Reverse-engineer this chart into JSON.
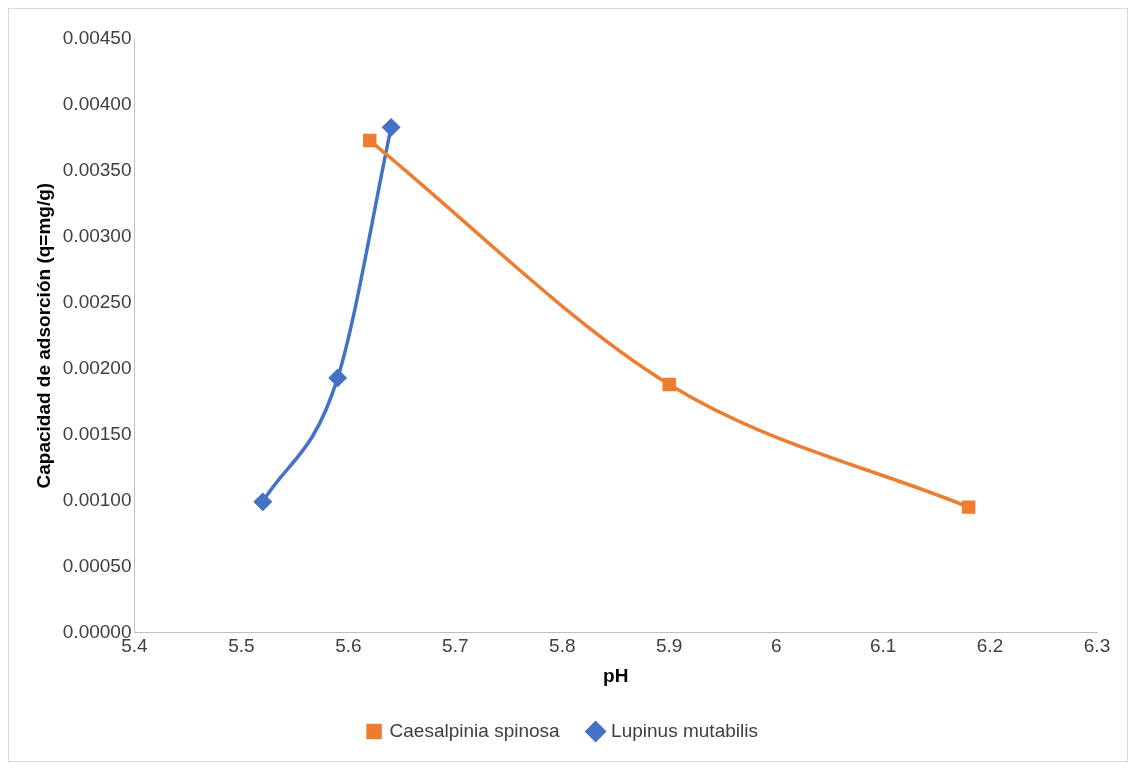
{
  "chart_data": {
    "type": "line",
    "xlabel": "pH",
    "ylabel": "Capacidad de adsorción (q=mg/g)",
    "xlim": [
      5.4,
      6.3
    ],
    "xticks": [
      5.4,
      5.5,
      5.6,
      5.7,
      5.8,
      5.9,
      6,
      6.1,
      6.2,
      6.3
    ],
    "ylim": [
      0,
      0.0045
    ],
    "yticks": [
      {
        "value": 0,
        "label": "0.00000"
      },
      {
        "value": 0.0005,
        "label": "0.00050"
      },
      {
        "value": 0.001,
        "label": "0.00100"
      },
      {
        "value": 0.0015,
        "label": "0.00150"
      },
      {
        "value": 0.002,
        "label": "0.00200"
      },
      {
        "value": 0.0025,
        "label": "0.00250"
      },
      {
        "value": 0.003,
        "label": "0.00300"
      },
      {
        "value": 0.0035,
        "label": "0.00350"
      },
      {
        "value": 0.004,
        "label": "0.00400"
      },
      {
        "value": 0.0045,
        "label": "0.00450"
      }
    ],
    "grid": false,
    "legend": "bottom",
    "series": [
      {
        "name": "Caesalpinia spinosa",
        "color": "#ed7d31",
        "marker": "square",
        "x": [
          5.62,
          5.9,
          6.18
        ],
        "values": [
          0.00373,
          0.00188,
          0.00095
        ]
      },
      {
        "name": "Lupinus mutabilis",
        "color": "#4472c4",
        "marker": "diamond",
        "x": [
          5.52,
          5.59,
          5.64
        ],
        "values": [
          0.00099,
          0.00193,
          0.00383
        ]
      }
    ]
  }
}
